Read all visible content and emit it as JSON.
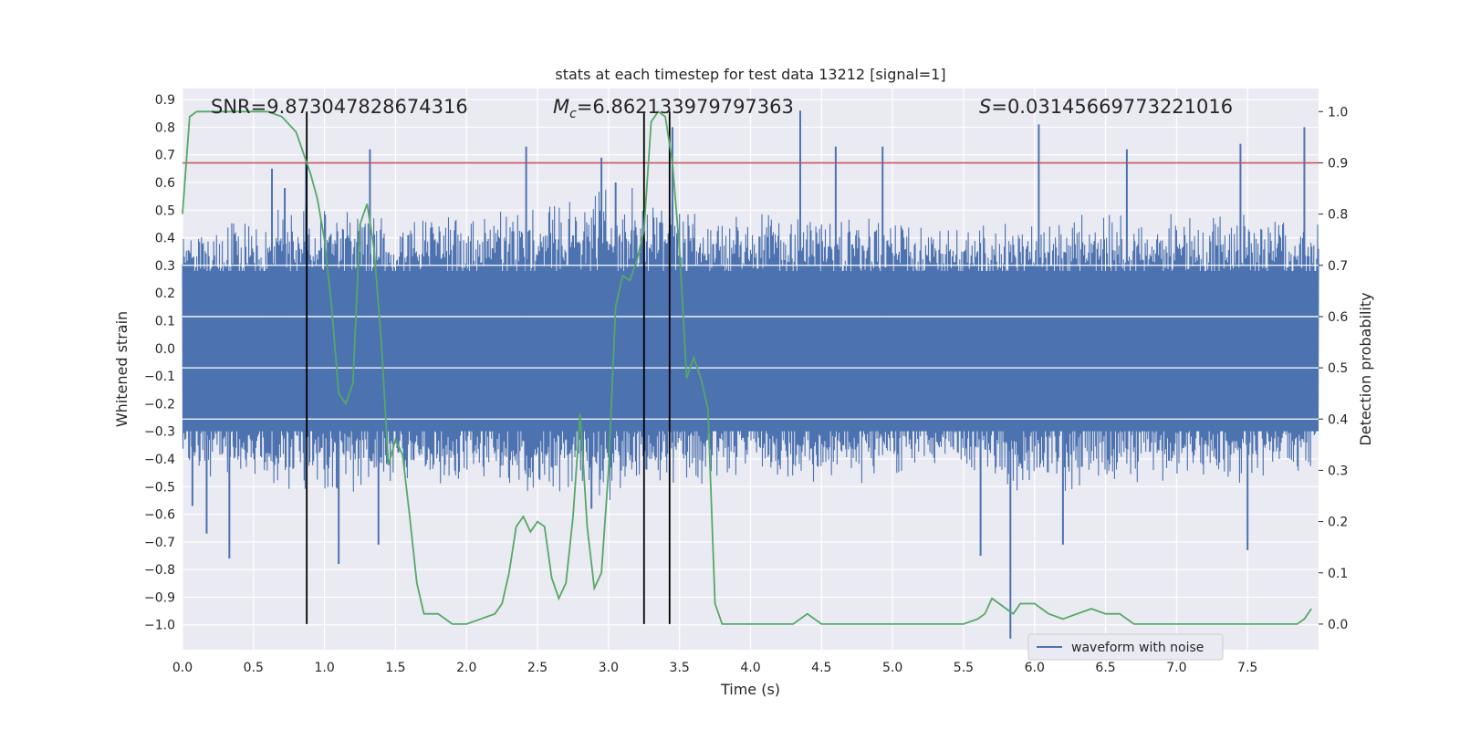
{
  "chart_data": {
    "type": "line",
    "title": "stats at each timestep for test data 13212 [signal=1]",
    "xlabel": "Time (s)",
    "ylabel_left": "Whitened strain",
    "ylabel_right": "Detection probability",
    "xlim": [
      0.0,
      8.0
    ],
    "ylim_left": [
      -1.09,
      0.94
    ],
    "ylim_right": [
      -0.05,
      1.045
    ],
    "x_ticks": [
      "0.0",
      "0.5",
      "1.0",
      "1.5",
      "2.0",
      "2.5",
      "3.0",
      "3.5",
      "4.0",
      "4.5",
      "5.0",
      "5.5",
      "6.0",
      "6.5",
      "7.0",
      "7.5"
    ],
    "y_left_ticks": [
      "0.9",
      "0.8",
      "0.7",
      "0.6",
      "0.5",
      "0.4",
      "0.3",
      "0.2",
      "0.1",
      "0.0",
      "−0.1",
      "−0.2",
      "−0.3",
      "−0.4",
      "−0.5",
      "−0.6",
      "−0.7",
      "−0.8",
      "−0.9",
      "−1.0"
    ],
    "y_right_ticks": [
      "1.0",
      "0.9",
      "0.8",
      "0.7",
      "0.6",
      "0.5",
      "0.4",
      "0.3",
      "0.2",
      "0.1",
      "0.0"
    ],
    "grid": true,
    "legend_position": "bottom-right",
    "annotations": {
      "snr": "SNR=9.873047828674316",
      "mc_symbol": "M",
      "mc_sub": "c",
      "mc_value": "=6.862133979797363",
      "s_symbol": "S",
      "s_value": "=0.03145669773221016"
    },
    "threshold": {
      "value": 0.9,
      "axis": "right",
      "color": "#c44e52"
    },
    "vertical_markers": [
      0.875,
      3.25,
      3.43
    ],
    "series": [
      {
        "name": "waveform with noise",
        "axis": "left",
        "color": "#4c72b0",
        "style": "dense noise band",
        "envelope": {
          "x": [
            0.0,
            0.5,
            1.0,
            1.5,
            2.0,
            2.5,
            3.0,
            3.5,
            4.0,
            4.5,
            5.0,
            5.5,
            6.0,
            6.5,
            7.0,
            7.5,
            8.0
          ],
          "upper": [
            0.45,
            0.5,
            0.55,
            0.5,
            0.5,
            0.55,
            0.6,
            0.55,
            0.5,
            0.5,
            0.5,
            0.45,
            0.5,
            0.5,
            0.5,
            0.5,
            0.45
          ],
          "lower": [
            -0.45,
            -0.5,
            -0.55,
            -0.5,
            -0.5,
            -0.55,
            -0.55,
            -0.5,
            -0.5,
            -0.5,
            -0.5,
            -0.45,
            -0.55,
            -0.5,
            -0.5,
            -0.5,
            -0.45
          ]
        },
        "spikes": [
          [
            0.07,
            -0.57
          ],
          [
            0.17,
            -0.67
          ],
          [
            0.33,
            -0.76
          ],
          [
            0.63,
            0.65
          ],
          [
            0.72,
            0.58
          ],
          [
            0.87,
            0.69
          ],
          [
            1.1,
            -0.78
          ],
          [
            1.32,
            0.72
          ],
          [
            1.38,
            -0.71
          ],
          [
            2.42,
            0.73
          ],
          [
            2.88,
            -0.58
          ],
          [
            2.95,
            0.69
          ],
          [
            3.05,
            0.6
          ],
          [
            3.45,
            0.8
          ],
          [
            4.35,
            0.86
          ],
          [
            4.6,
            0.73
          ],
          [
            4.93,
            0.73
          ],
          [
            5.62,
            -0.75
          ],
          [
            5.83,
            -1.05
          ],
          [
            6.03,
            0.81
          ],
          [
            6.2,
            -0.71
          ],
          [
            6.65,
            0.72
          ],
          [
            7.45,
            0.74
          ],
          [
            7.5,
            -0.73
          ],
          [
            7.9,
            0.8
          ]
        ]
      },
      {
        "name": "",
        "axis": "right",
        "color": "#55a868",
        "x": [
          0.0,
          0.05,
          0.1,
          0.2,
          0.3,
          0.4,
          0.5,
          0.6,
          0.7,
          0.8,
          0.9,
          0.95,
          1.0,
          1.05,
          1.1,
          1.15,
          1.2,
          1.25,
          1.3,
          1.35,
          1.4,
          1.45,
          1.5,
          1.55,
          1.6,
          1.65,
          1.7,
          1.8,
          1.9,
          2.0,
          2.1,
          2.2,
          2.25,
          2.3,
          2.35,
          2.4,
          2.45,
          2.5,
          2.55,
          2.6,
          2.65,
          2.7,
          2.75,
          2.8,
          2.85,
          2.9,
          2.95,
          3.0,
          3.05,
          3.1,
          3.15,
          3.2,
          3.25,
          3.3,
          3.35,
          3.4,
          3.45,
          3.5,
          3.55,
          3.6,
          3.65,
          3.7,
          3.75,
          3.8,
          3.9,
          4.0,
          4.1,
          4.2,
          4.3,
          4.4,
          4.5,
          4.6,
          4.7,
          4.8,
          4.9,
          5.0,
          5.1,
          5.2,
          5.3,
          5.4,
          5.5,
          5.6,
          5.65,
          5.7,
          5.8,
          5.85,
          5.9,
          5.95,
          6.0,
          6.1,
          6.2,
          6.3,
          6.4,
          6.5,
          6.55,
          6.6,
          6.7,
          6.8,
          6.9,
          7.0,
          7.1,
          7.2,
          7.3,
          7.4,
          7.5,
          7.6,
          7.7,
          7.8,
          7.85,
          7.9,
          7.95
        ],
        "values": [
          0.8,
          0.99,
          1.0,
          1.0,
          1.0,
          1.0,
          1.0,
          1.0,
          0.99,
          0.96,
          0.88,
          0.83,
          0.75,
          0.62,
          0.45,
          0.43,
          0.47,
          0.78,
          0.82,
          0.73,
          0.55,
          0.31,
          0.36,
          0.33,
          0.21,
          0.08,
          0.02,
          0.02,
          0.0,
          0.0,
          0.01,
          0.02,
          0.04,
          0.1,
          0.19,
          0.21,
          0.18,
          0.2,
          0.19,
          0.09,
          0.05,
          0.08,
          0.21,
          0.41,
          0.19,
          0.07,
          0.1,
          0.3,
          0.62,
          0.68,
          0.67,
          0.71,
          0.77,
          0.98,
          1.0,
          0.99,
          0.9,
          0.73,
          0.48,
          0.52,
          0.48,
          0.42,
          0.04,
          0.0,
          0.0,
          0.0,
          0.0,
          0.0,
          0.0,
          0.02,
          0.0,
          0.0,
          0.0,
          0.0,
          0.0,
          0.0,
          0.0,
          0.0,
          0.0,
          0.0,
          0.0,
          0.01,
          0.02,
          0.05,
          0.03,
          0.02,
          0.04,
          0.04,
          0.04,
          0.02,
          0.01,
          0.02,
          0.03,
          0.02,
          0.02,
          0.02,
          0.0,
          0.0,
          0.0,
          0.0,
          0.0,
          0.0,
          0.0,
          0.0,
          0.0,
          0.0,
          0.0,
          0.0,
          0.0,
          0.01,
          0.03
        ]
      }
    ]
  }
}
